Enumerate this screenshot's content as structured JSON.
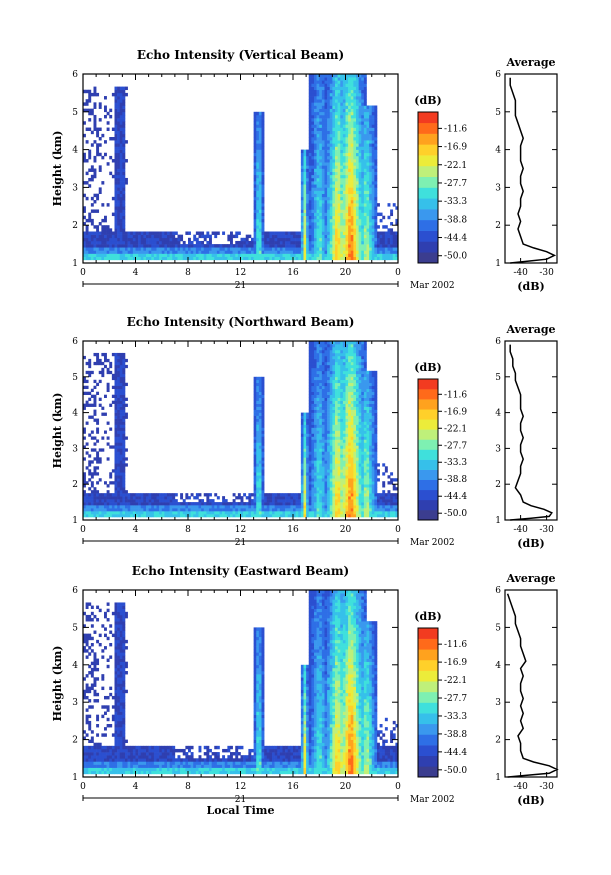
{
  "chart_data": [
    {
      "type": "heatmap",
      "title": "Echo Intensity (Vertical Beam)",
      "ylabel": "Height (km)",
      "xlabel": "",
      "xticks": [
        "0",
        "4",
        "8",
        "12",
        "16",
        "20",
        "0"
      ],
      "xlim": [
        0,
        24
      ],
      "yticks": [
        "1",
        "2",
        "3",
        "4",
        "5",
        "6"
      ],
      "ylim": [
        1,
        6
      ],
      "date_day": "21",
      "date_label": "Mar 2002",
      "colorbar": {
        "unit": "(dB)",
        "ticks": [
          "-11.6",
          "-16.9",
          "-22.1",
          "-27.7",
          "-33.3",
          "-38.8",
          "-44.4",
          "-50.0"
        ]
      },
      "profile": {
        "title": "Average",
        "xlabel": "(dB)",
        "xticks": [
          "-40",
          "-30"
        ],
        "xlim": [
          -46,
          -26
        ],
        "yticks": [
          "1",
          "2",
          "3",
          "4",
          "5",
          "6"
        ],
        "ylim": [
          1,
          6
        ],
        "height": [
          1.0,
          1.05,
          1.1,
          1.2,
          1.3,
          1.4,
          1.5,
          1.7,
          1.9,
          2.1,
          2.3,
          2.5,
          2.7,
          2.9,
          3.1,
          3.3,
          3.5,
          3.7,
          3.9,
          4.1,
          4.3,
          4.5,
          4.7,
          4.9,
          5.1,
          5.3,
          5.5,
          5.7,
          5.9
        ],
        "value": [
          -44,
          -37,
          -30,
          -27,
          -30,
          -35,
          -39,
          -40,
          -41,
          -40,
          -41,
          -40,
          -40,
          -39,
          -40,
          -40,
          -39,
          -40,
          -40,
          -40,
          -39,
          -40,
          -41,
          -42,
          -42,
          -42,
          -43,
          -44,
          -44
        ]
      }
    },
    {
      "type": "heatmap",
      "title": "Echo Intensity (Northward Beam)",
      "ylabel": "Height (km)",
      "xlabel": "",
      "xticks": [
        "0",
        "4",
        "8",
        "12",
        "16",
        "20",
        "0"
      ],
      "xlim": [
        0,
        24
      ],
      "yticks": [
        "1",
        "2",
        "3",
        "4",
        "5",
        "6"
      ],
      "ylim": [
        1,
        6
      ],
      "date_day": "21",
      "date_label": "Mar 2002",
      "colorbar": {
        "unit": "(dB)",
        "ticks": [
          "-11.6",
          "-16.9",
          "-22.1",
          "-27.7",
          "-33.3",
          "-38.8",
          "-44.4",
          "-50.0"
        ]
      },
      "profile": {
        "title": "Average",
        "xlabel": "(dB)",
        "xticks": [
          "-40",
          "-30"
        ],
        "xlim": [
          -46,
          -26
        ],
        "yticks": [
          "1",
          "2",
          "3",
          "4",
          "5",
          "6"
        ],
        "ylim": [
          1,
          6
        ],
        "height": [
          1.0,
          1.05,
          1.1,
          1.2,
          1.3,
          1.4,
          1.5,
          1.7,
          1.9,
          2.1,
          2.3,
          2.5,
          2.7,
          2.9,
          3.1,
          3.3,
          3.5,
          3.7,
          3.9,
          4.1,
          4.3,
          4.5,
          4.7,
          4.9,
          5.1,
          5.3,
          5.5,
          5.7,
          5.9
        ],
        "value": [
          -44,
          -36,
          -29,
          -28,
          -31,
          -36,
          -39,
          -40,
          -42,
          -41,
          -40,
          -40,
          -39,
          -40,
          -40,
          -39,
          -40,
          -40,
          -39,
          -40,
          -40,
          -40,
          -41,
          -42,
          -42,
          -43,
          -43,
          -44,
          -44
        ]
      }
    },
    {
      "type": "heatmap",
      "title": "Echo Intensity (Eastward Beam)",
      "ylabel": "Height (km)",
      "xlabel": "Local Time",
      "xticks": [
        "0",
        "4",
        "8",
        "12",
        "16",
        "20",
        "0"
      ],
      "xlim": [
        0,
        24
      ],
      "yticks": [
        "1",
        "2",
        "3",
        "4",
        "5",
        "6"
      ],
      "ylim": [
        1,
        6
      ],
      "date_day": "21",
      "date_label": "Mar 2002",
      "colorbar": {
        "unit": "(dB)",
        "ticks": [
          "-11.6",
          "-16.9",
          "-22.1",
          "-27.7",
          "-33.3",
          "-38.8",
          "-44.4",
          "-50.0"
        ]
      },
      "profile": {
        "title": "Average",
        "xlabel": "(dB)",
        "xticks": [
          "-40",
          "-30"
        ],
        "xlim": [
          -46,
          -26
        ],
        "yticks": [
          "1",
          "2",
          "3",
          "4",
          "5",
          "6"
        ],
        "ylim": [
          1,
          6
        ],
        "height": [
          1.0,
          1.05,
          1.1,
          1.2,
          1.3,
          1.4,
          1.5,
          1.7,
          1.9,
          2.1,
          2.3,
          2.5,
          2.7,
          2.9,
          3.1,
          3.3,
          3.5,
          3.7,
          3.9,
          4.1,
          4.3,
          4.5,
          4.7,
          4.9,
          5.1,
          5.3,
          5.5,
          5.7,
          5.9
        ],
        "value": [
          -45,
          -37,
          -29,
          -26,
          -29,
          -35,
          -39,
          -40,
          -40,
          -41,
          -39,
          -40,
          -39,
          -40,
          -39,
          -40,
          -40,
          -39,
          -40,
          -38,
          -39,
          -40,
          -40,
          -41,
          -42,
          -42,
          -43,
          -44,
          -45
        ]
      }
    }
  ],
  "colors": {
    "colormap": [
      "#3b3d8f",
      "#2f3fb0",
      "#2b4fd0",
      "#2e6fe6",
      "#3a98ee",
      "#36c0ea",
      "#3fe0dc",
      "#7ef0b2",
      "#bff07a",
      "#ecec3a",
      "#ffd02a",
      "#ffa21e",
      "#ff6a1a",
      "#f23b20"
    ]
  }
}
